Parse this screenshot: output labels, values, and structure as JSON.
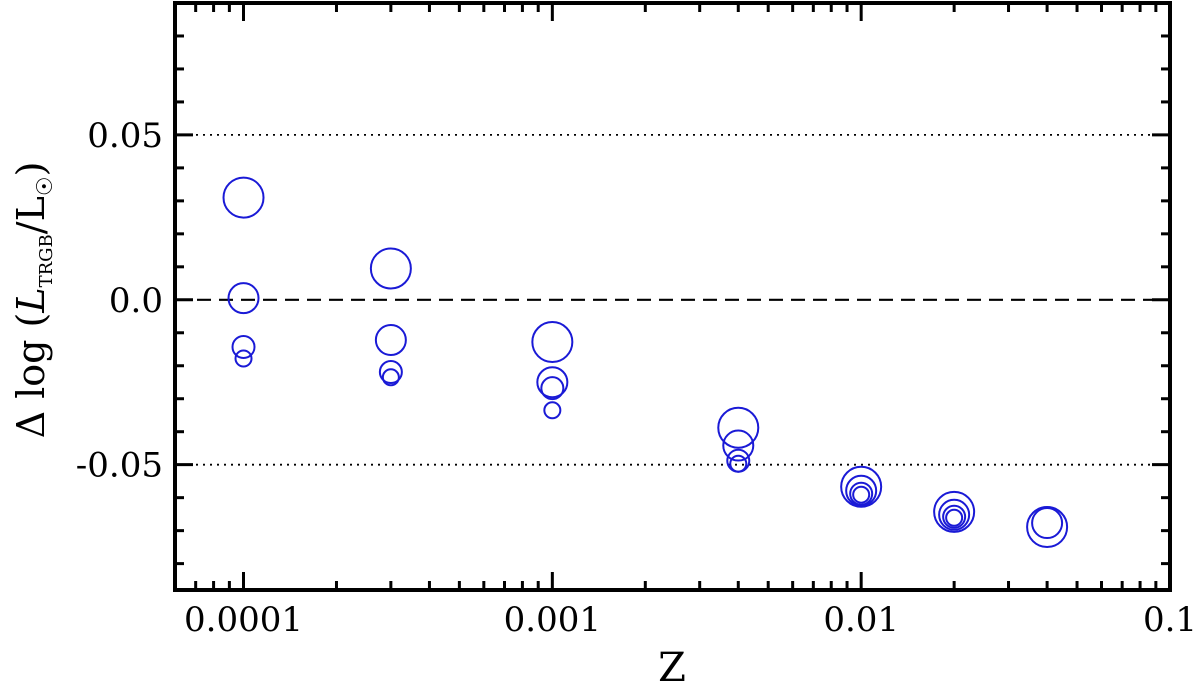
{
  "chart_data": {
    "type": "scatter",
    "xlabel": "Z",
    "ylabel": {
      "prefix": "Δ log (",
      "symbol": "L",
      "subscript": "TRGB",
      "suffix": "/L",
      "sun_symbol": "☉",
      "close": ")"
    },
    "x_scale": "log",
    "xlim": [
      6e-05,
      0.1
    ],
    "ylim": [
      -0.088,
      0.09
    ],
    "x_tick_labels": [
      "0.0001",
      "0.001",
      "0.01",
      "0.1"
    ],
    "x_ticks": [
      0.0001,
      0.001,
      0.01,
      0.1
    ],
    "y_tick_labels": [
      "0.05",
      "0.0",
      "-0.05"
    ],
    "y_ticks": [
      0.05,
      0.0,
      -0.05
    ],
    "reference_lines": [
      {
        "y": 0.05,
        "style": "dotted"
      },
      {
        "y": 0.0,
        "style": "dashed"
      },
      {
        "y": -0.05,
        "style": "dotted"
      }
    ],
    "marker_color": "#1a1ad6",
    "points": [
      {
        "x": 0.0001,
        "y": 0.031,
        "size": "large"
      },
      {
        "x": 0.0001,
        "y": 0.0005,
        "size": "medium"
      },
      {
        "x": 0.0001,
        "y": -0.0143,
        "size": "small"
      },
      {
        "x": 0.0001,
        "y": -0.0178,
        "size": "smallest"
      },
      {
        "x": 0.0003,
        "y": 0.0095,
        "size": "large"
      },
      {
        "x": 0.0003,
        "y": -0.0122,
        "size": "medium"
      },
      {
        "x": 0.0003,
        "y": -0.0219,
        "size": "small"
      },
      {
        "x": 0.0003,
        "y": -0.0235,
        "size": "smallest"
      },
      {
        "x": 0.001,
        "y": -0.0128,
        "size": "large"
      },
      {
        "x": 0.001,
        "y": -0.025,
        "size": "medium"
      },
      {
        "x": 0.001,
        "y": -0.0268,
        "size": "small"
      },
      {
        "x": 0.001,
        "y": -0.0335,
        "size": "smallest"
      },
      {
        "x": 0.004,
        "y": -0.0388,
        "size": "large"
      },
      {
        "x": 0.004,
        "y": -0.0442,
        "size": "medium"
      },
      {
        "x": 0.004,
        "y": -0.0488,
        "size": "small"
      },
      {
        "x": 0.004,
        "y": -0.0497,
        "size": "smallest"
      },
      {
        "x": 0.01,
        "y": -0.0567,
        "size": "large"
      },
      {
        "x": 0.01,
        "y": -0.0579,
        "size": "medium"
      },
      {
        "x": 0.01,
        "y": -0.0588,
        "size": "small"
      },
      {
        "x": 0.01,
        "y": -0.0591,
        "size": "smallest"
      },
      {
        "x": 0.02,
        "y": -0.0643,
        "size": "large"
      },
      {
        "x": 0.02,
        "y": -0.0652,
        "size": "medium"
      },
      {
        "x": 0.02,
        "y": -0.0658,
        "size": "small"
      },
      {
        "x": 0.02,
        "y": -0.0661,
        "size": "smallest"
      },
      {
        "x": 0.04,
        "y": -0.0689,
        "size": "large"
      },
      {
        "x": 0.04,
        "y": -0.0677,
        "size": "medium"
      }
    ],
    "grid": false
  }
}
